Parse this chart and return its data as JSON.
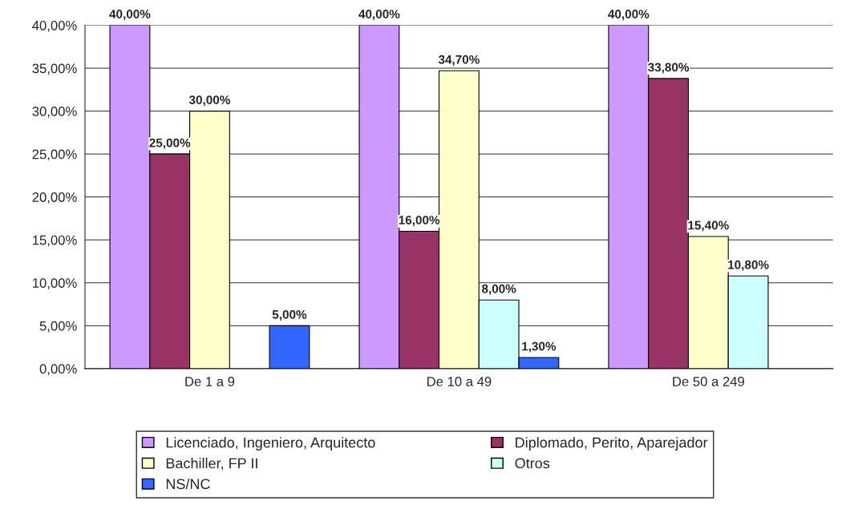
{
  "chart_data": {
    "type": "bar",
    "categories": [
      "De 1 a 9",
      "De 10 a 49",
      "De 50 a 249"
    ],
    "series": [
      {
        "name": "Licenciado, Ingeniero, Arquitecto",
        "color": "#cc99ff",
        "values": [
          40,
          40,
          40
        ],
        "value_labels": [
          "40,00%",
          "40,00%",
          "40,00%"
        ]
      },
      {
        "name": "Diplomado, Perito, Aparejador",
        "color": "#993366",
        "values": [
          25,
          16,
          33.8
        ],
        "value_labels": [
          "25,00%",
          "16,00%",
          "33,80%"
        ]
      },
      {
        "name": "Bachiller, FP II",
        "color": "#ffffcc",
        "values": [
          30,
          34.7,
          15.4
        ],
        "value_labels": [
          "30,00%",
          "34,70%",
          "15,40%"
        ]
      },
      {
        "name": "Otros",
        "color": "#ccffff",
        "values": [
          null,
          8,
          10.8
        ],
        "value_labels": [
          null,
          "8,00%",
          "10,80%"
        ]
      },
      {
        "name": "NS/NC",
        "color": "#3366ff",
        "values": [
          5,
          1.3,
          null
        ],
        "value_labels": [
          "5,00%",
          "1,30%",
          null
        ]
      }
    ],
    "ylim": [
      0,
      40
    ],
    "yticks": [
      {
        "value": 0,
        "label": "0,00%"
      },
      {
        "value": 5,
        "label": "5,00%"
      },
      {
        "value": 10,
        "label": "10,00%"
      },
      {
        "value": 15,
        "label": "15,00%"
      },
      {
        "value": 20,
        "label": "20,00%"
      },
      {
        "value": 25,
        "label": "25,00%"
      },
      {
        "value": 30,
        "label": "30,00%"
      },
      {
        "value": 35,
        "label": "35,00%"
      },
      {
        "value": 40,
        "label": "40,00%"
      }
    ],
    "grid": "y",
    "legend": "bottom"
  }
}
